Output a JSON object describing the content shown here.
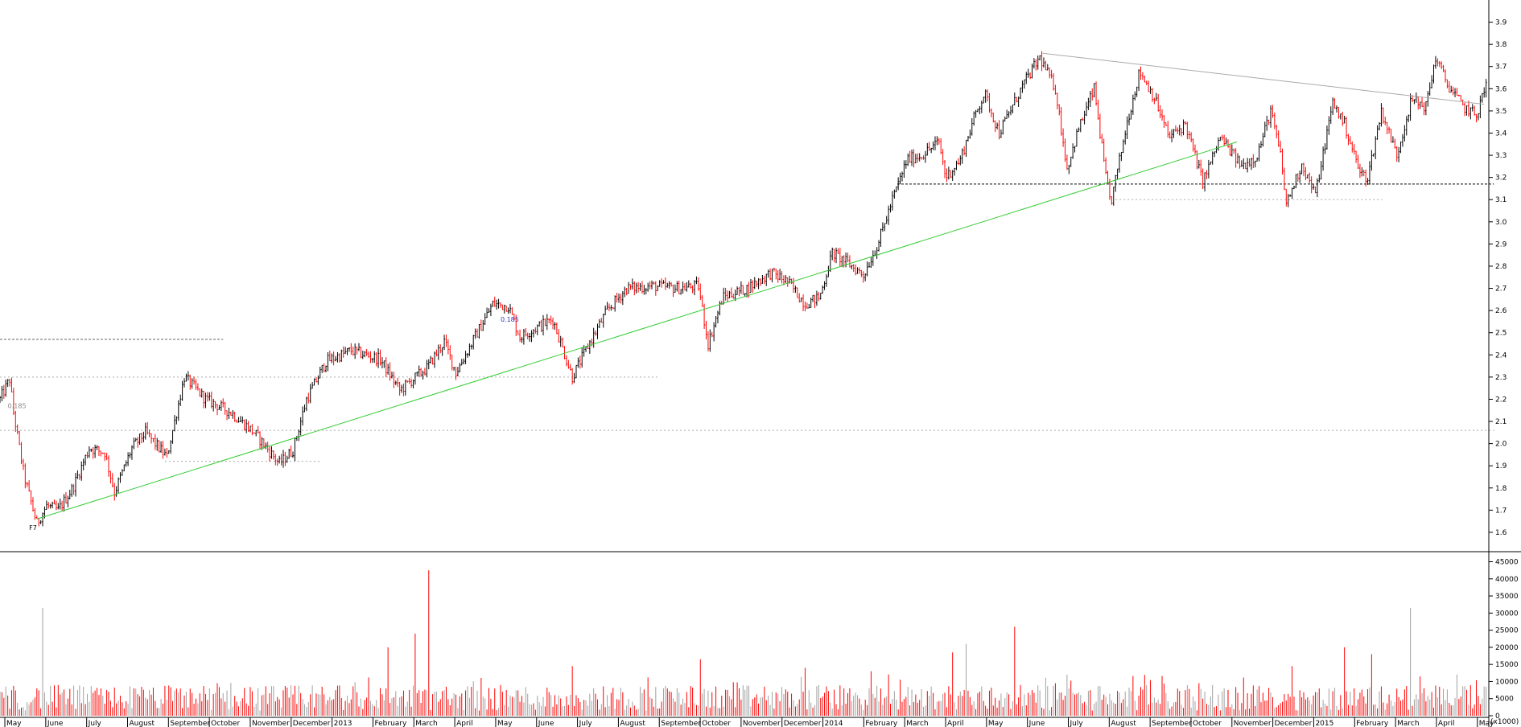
{
  "chart_data": [
    {
      "type": "candlestick",
      "title": "",
      "ylim": [
        1.52,
        4.0
      ],
      "y_ticks": [
        1.6,
        1.7,
        1.8,
        1.9,
        2.0,
        2.1,
        2.2,
        2.3,
        2.4,
        2.5,
        2.6,
        2.7,
        2.8,
        2.9,
        3.0,
        3.1,
        3.2,
        3.3,
        3.4,
        3.5,
        3.6,
        3.7,
        3.8,
        3.9
      ],
      "up_color": "#000000",
      "down_color": "#ff0000",
      "x_labels": [
        "May",
        "June",
        "July",
        "August",
        "September",
        "October",
        "November",
        "December",
        "2013",
        "February",
        "March",
        "April",
        "May",
        "June",
        "July",
        "August",
        "September",
        "October",
        "November",
        "December",
        "2014",
        "February",
        "March",
        "April",
        "May",
        "June",
        "July",
        "August",
        "September",
        "October",
        "November",
        "December",
        "2015",
        "February",
        "March",
        "April",
        "May"
      ],
      "price_path": [
        [
          0,
          2.2
        ],
        [
          10,
          2.29
        ],
        [
          14,
          2.14
        ],
        [
          25,
          1.85
        ],
        [
          38,
          1.64
        ],
        [
          48,
          1.72
        ],
        [
          60,
          1.7
        ],
        [
          75,
          1.8
        ],
        [
          92,
          1.98
        ],
        [
          108,
          1.96
        ],
        [
          118,
          1.78
        ],
        [
          136,
          1.98
        ],
        [
          150,
          2.05
        ],
        [
          172,
          1.94
        ],
        [
          190,
          2.3
        ],
        [
          212,
          2.2
        ],
        [
          238,
          2.14
        ],
        [
          262,
          2.05
        ],
        [
          288,
          1.91
        ],
        [
          302,
          1.97
        ],
        [
          316,
          2.2
        ],
        [
          336,
          2.37
        ],
        [
          362,
          2.42
        ],
        [
          392,
          2.38
        ],
        [
          412,
          2.24
        ],
        [
          440,
          2.34
        ],
        [
          458,
          2.46
        ],
        [
          470,
          2.32
        ],
        [
          492,
          2.5
        ],
        [
          508,
          2.63
        ],
        [
          524,
          2.62
        ],
        [
          536,
          2.48
        ],
        [
          552,
          2.52
        ],
        [
          570,
          2.56
        ],
        [
          590,
          2.3
        ],
        [
          606,
          2.44
        ],
        [
          626,
          2.6
        ],
        [
          646,
          2.7
        ],
        [
          672,
          2.71
        ],
        [
          700,
          2.7
        ],
        [
          720,
          2.71
        ],
        [
          730,
          2.45
        ],
        [
          745,
          2.66
        ],
        [
          770,
          2.7
        ],
        [
          795,
          2.77
        ],
        [
          812,
          2.73
        ],
        [
          830,
          2.63
        ],
        [
          845,
          2.66
        ],
        [
          858,
          2.86
        ],
        [
          872,
          2.82
        ],
        [
          890,
          2.76
        ],
        [
          905,
          2.9
        ],
        [
          920,
          3.1
        ],
        [
          935,
          3.28
        ],
        [
          950,
          3.3
        ],
        [
          968,
          3.36
        ],
        [
          975,
          3.2
        ],
        [
          990,
          3.28
        ],
        [
          1005,
          3.48
        ],
        [
          1015,
          3.58
        ],
        [
          1030,
          3.4
        ],
        [
          1055,
          3.62
        ],
        [
          1072,
          3.74
        ],
        [
          1088,
          3.6
        ],
        [
          1100,
          3.24
        ],
        [
          1112,
          3.42
        ],
        [
          1128,
          3.6
        ],
        [
          1140,
          3.2
        ],
        [
          1145,
          3.08
        ],
        [
          1162,
          3.45
        ],
        [
          1175,
          3.68
        ],
        [
          1190,
          3.56
        ],
        [
          1205,
          3.38
        ],
        [
          1222,
          3.44
        ],
        [
          1240,
          3.18
        ],
        [
          1258,
          3.38
        ],
        [
          1280,
          3.25
        ],
        [
          1296,
          3.3
        ],
        [
          1310,
          3.5
        ],
        [
          1320,
          3.3
        ],
        [
          1326,
          3.08
        ],
        [
          1342,
          3.26
        ],
        [
          1356,
          3.12
        ],
        [
          1374,
          3.54
        ],
        [
          1386,
          3.44
        ],
        [
          1402,
          3.22
        ],
        [
          1410,
          3.2
        ],
        [
          1424,
          3.5
        ],
        [
          1440,
          3.3
        ],
        [
          1455,
          3.55
        ],
        [
          1470,
          3.52
        ],
        [
          1480,
          3.74
        ],
        [
          1492,
          3.62
        ],
        [
          1508,
          3.52
        ],
        [
          1522,
          3.48
        ],
        [
          1532,
          3.62
        ]
      ],
      "horizontal_levels": [
        {
          "y": 2.47,
          "style": "dashed",
          "color": "#666666",
          "from_x": 0,
          "to_x": 230
        },
        {
          "y": 2.3,
          "style": "dotted",
          "color": "#aaaaaa",
          "from_x": 0,
          "to_x": 680
        },
        {
          "y": 2.06,
          "style": "dotted",
          "color": "#aaaaaa",
          "from_x": 0,
          "to_x": 1540
        },
        {
          "y": 1.92,
          "style": "dotted",
          "color": "#aaaaaa",
          "from_x": 170,
          "to_x": 330
        },
        {
          "y": 3.17,
          "style": "dashed",
          "color": "#000000",
          "from_x": 925,
          "to_x": 1540
        },
        {
          "y": 3.1,
          "style": "dotted",
          "color": "#aaaaaa",
          "from_x": 1150,
          "to_x": 1425
        }
      ],
      "trendlines": [
        {
          "from": [
            38,
            1.66
          ],
          "to": [
            1275,
            3.36
          ],
          "color": "#33cc33"
        },
        {
          "from": [
            1075,
            3.76
          ],
          "to": [
            1530,
            3.53
          ],
          "color": "#aaaaaa"
        }
      ],
      "annotations": [
        {
          "text": "0.185",
          "x": 8,
          "y": 2.16,
          "color": "#888888"
        },
        {
          "text": "0.185",
          "x": 516,
          "y": 2.55,
          "color": "#3333cc"
        },
        {
          "text": "F7",
          "x": 30,
          "y": 1.61,
          "color": "#000000"
        }
      ]
    },
    {
      "type": "bar",
      "title": "",
      "ylabel": "",
      "ylim": [
        0,
        47000
      ],
      "y_ticks": [
        0,
        5000,
        10000,
        15000,
        20000,
        25000,
        30000,
        35000,
        40000,
        45000
      ],
      "unit_label": "(x1000)",
      "bar_colors": [
        "#ff0000",
        "#a0a0a0"
      ],
      "base_volume_range": [
        1500,
        9000
      ],
      "spikes": [
        {
          "x": 44,
          "value": 31500
        },
        {
          "x": 400,
          "value": 20000
        },
        {
          "x": 427,
          "value": 24000
        },
        {
          "x": 441,
          "value": 42500
        },
        {
          "x": 722,
          "value": 16500
        },
        {
          "x": 982,
          "value": 18500
        },
        {
          "x": 996,
          "value": 21000
        },
        {
          "x": 1045,
          "value": 26000
        },
        {
          "x": 1331,
          "value": 14500
        },
        {
          "x": 1385,
          "value": 20000
        },
        {
          "x": 1414,
          "value": 18000
        },
        {
          "x": 1453,
          "value": 31500
        },
        {
          "x": 1464,
          "value": 11500
        },
        {
          "x": 1088,
          "value": 9500
        },
        {
          "x": 1100,
          "value": 12000
        },
        {
          "x": 590,
          "value": 14500
        },
        {
          "x": 830,
          "value": 14000
        },
        {
          "x": 898,
          "value": 13000
        }
      ]
    }
  ]
}
